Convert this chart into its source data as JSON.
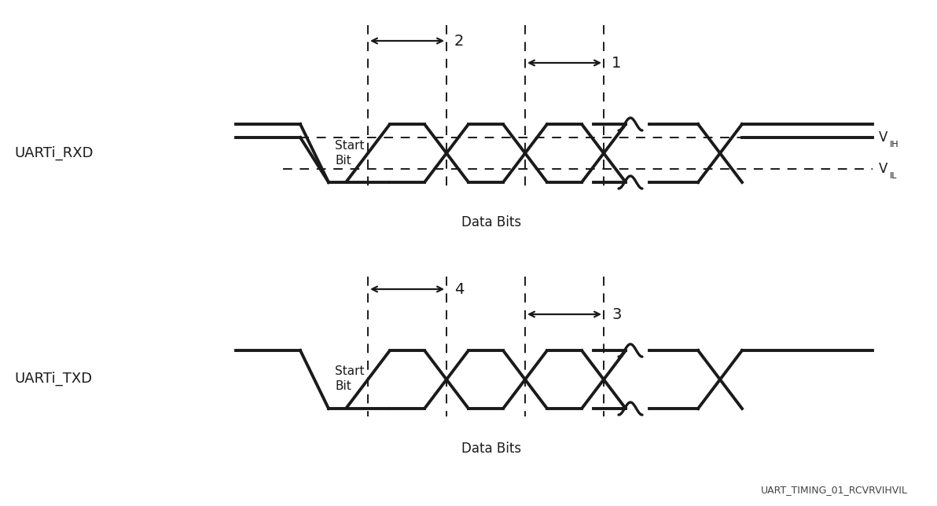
{
  "bg_color": "#ffffff",
  "line_color": "#1a1a1a",
  "signal_lw": 2.8,
  "dashed_lw": 1.4,
  "arrow_lw": 1.6,
  "fig_width": 11.92,
  "fig_height": 6.44,
  "dpi": 100,
  "rxd_label": "UARTi_RXD",
  "txd_label": "UARTi_TXD",
  "data_bits_label": "Data Bits",
  "start_bit_label": "Start\nBit",
  "vih_label": "V",
  "vil_label": "V",
  "vih_sub": "IH",
  "vil_sub": "IL",
  "label1": "2",
  "label2": "1",
  "label3": "4",
  "label4": "3",
  "footnote": "UART_TIMING_01_RCVRVIHVIL",
  "label_fs": 13,
  "annot_fs": 14,
  "startbit_fs": 11,
  "databits_fs": 12,
  "footnote_fs": 9,
  "vih_fs": 12,
  "vih_sub_fs": 8
}
